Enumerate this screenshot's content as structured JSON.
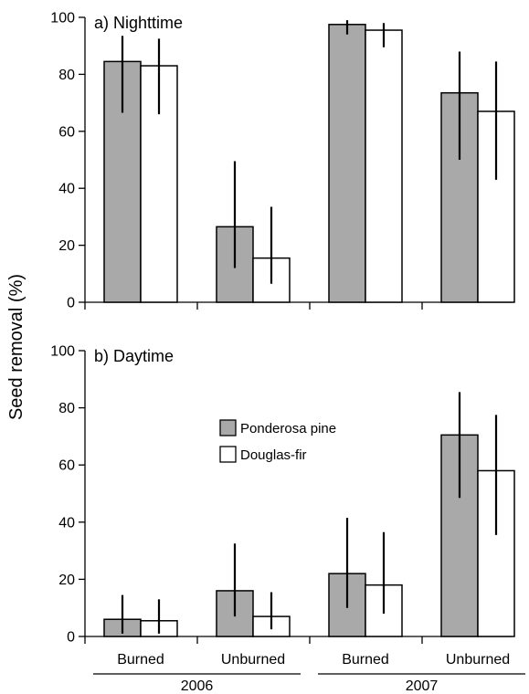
{
  "chart_data": {
    "type": "bar",
    "ylabel": "Seed removal (%)",
    "ylim": [
      0,
      100
    ],
    "yticks": [
      0,
      20,
      40,
      60,
      80,
      100
    ],
    "categories": [
      "Burned",
      "Unburned",
      "Burned",
      "Unburned"
    ],
    "groups": [
      {
        "label": "2006",
        "categories": [
          0,
          1
        ]
      },
      {
        "label": "2007",
        "categories": [
          2,
          3
        ]
      }
    ],
    "legend": [
      {
        "name": "Ponderosa pine",
        "color": "#a9a9a9"
      },
      {
        "name": "Douglas-fir",
        "color": "#ffffff"
      }
    ],
    "panels": [
      {
        "title": "a) Nighttime",
        "series": [
          {
            "name": "Ponderosa pine",
            "values": [
              84.5,
              26.5,
              97.5,
              73.5
            ],
            "err_low": [
              66.5,
              12,
              94,
              50
            ],
            "err_high": [
              93.5,
              49.5,
              99,
              88
            ]
          },
          {
            "name": "Douglas-fir",
            "values": [
              83,
              15.5,
              95.5,
              67
            ],
            "err_low": [
              66,
              6.5,
              89.5,
              43
            ],
            "err_high": [
              92.5,
              33.5,
              98,
              84.5
            ]
          }
        ]
      },
      {
        "title": "b) Daytime",
        "series": [
          {
            "name": "Ponderosa pine",
            "values": [
              6,
              16,
              22,
              70.5
            ],
            "err_low": [
              1,
              7,
              10,
              48.5
            ],
            "err_high": [
              14.5,
              32.5,
              41.5,
              85.5
            ]
          },
          {
            "name": "Douglas-fir",
            "values": [
              5.5,
              7,
              18,
              58
            ],
            "err_low": [
              1,
              2.5,
              8,
              35.5
            ],
            "err_high": [
              13,
              15.5,
              36.5,
              77.5
            ]
          }
        ]
      }
    ]
  }
}
